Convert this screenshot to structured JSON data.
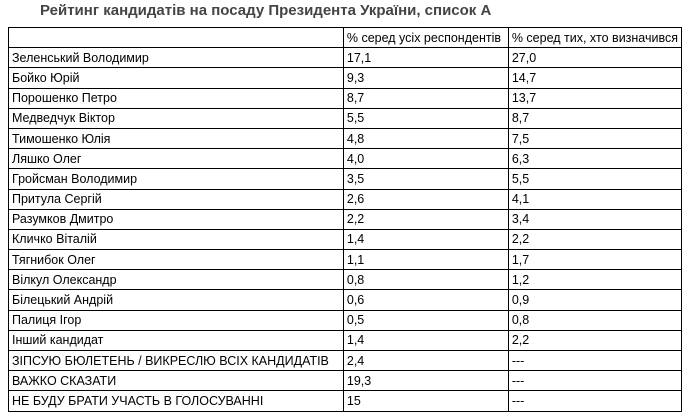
{
  "title": "Рейтинг кандидатів на посаду Президента України, список А",
  "table": {
    "header": [
      "% серед усіх респондентів",
      "% серед тих, хто визначився"
    ],
    "rows": [
      [
        "Зеленський Володимир",
        "17,1",
        "27,0"
      ],
      [
        "Бойко Юрій",
        "9,3",
        "14,7"
      ],
      [
        "Порошенко Петро",
        "8,7",
        "13,7"
      ],
      [
        "Медведчук Віктор",
        "5,5",
        "8,7"
      ],
      [
        "Тимошенко Юлія",
        "4,8",
        "7,5"
      ],
      [
        "Ляшко Олег",
        "4,0",
        "6,3"
      ],
      [
        "Гройсман Володимир",
        "3,5",
        "5,5"
      ],
      [
        "Притула Сергій",
        "2,6",
        "4,1"
      ],
      [
        "Разумков Дмитро",
        "2,2",
        "3,4"
      ],
      [
        "Кличко Віталій",
        "1,4",
        "2,2"
      ],
      [
        "Тягнибок Олег",
        "1,1",
        "1,7"
      ],
      [
        "Вілкул Олександр",
        "0,8",
        "1,2"
      ],
      [
        "Білецький Андрій",
        "0,6",
        "0,9"
      ],
      [
        "Палиця Ігор",
        "0,5",
        "0,8"
      ],
      [
        "Інший кандидат",
        "1,4",
        "2,2"
      ],
      [
        "ЗІПСУЮ БЮЛЕТЕНЬ / ВИКРЕСЛЮ ВСІХ КАНДИДАТІВ",
        "2,4",
        "---"
      ],
      [
        "ВАЖКО СКАЗАТИ",
        "19,3",
        "---"
      ],
      [
        "НЕ БУДУ БРАТИ УЧАСТЬ В ГОЛОСУВАННІ",
        "15",
        "---"
      ]
    ]
  }
}
